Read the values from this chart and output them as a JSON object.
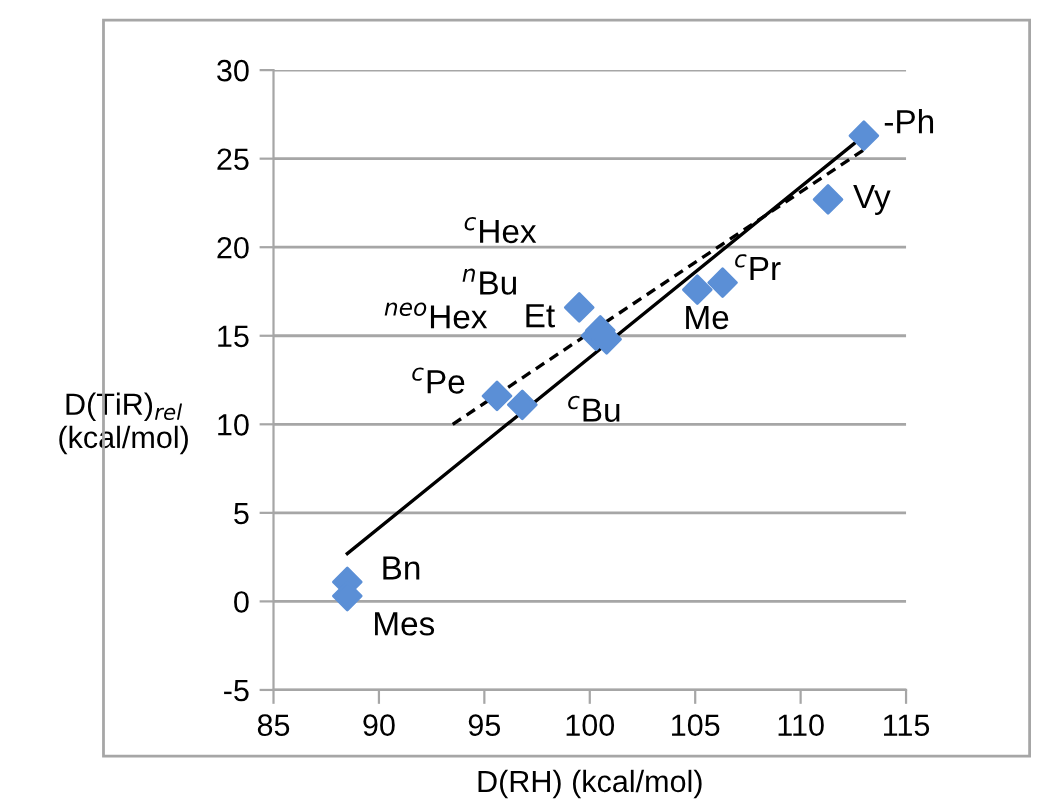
{
  "chart_data": {
    "type": "scatter",
    "xlabel": "D(RH) (kcal/mol)",
    "ylabel": "D(TiR)$_{rel}$\n(kcal/mol)",
    "xlim": [
      85,
      115
    ],
    "xticks": [
      85,
      90,
      95,
      100,
      105,
      110,
      115
    ],
    "ylim": [
      -5,
      30
    ],
    "yticks": [
      -5,
      0,
      5,
      10,
      15,
      20,
      25,
      30
    ],
    "grid": "y",
    "series": [
      {
        "color": "#5b8fd6",
        "marker": "diamond",
        "x": [
          113.0,
          111.3,
          106.3,
          105.1,
          99.5,
          100.3,
          100.5,
          100.8,
          95.6,
          96.8,
          88.5,
          88.5
        ],
        "values": [
          26.3,
          22.7,
          18.0,
          17.6,
          16.6,
          15.0,
          15.3,
          14.8,
          11.6,
          11.1,
          1.1,
          0.3
        ]
      },
      {
        "type": "line",
        "color": "#000000",
        "line_style": "solid",
        "marker": "none",
        "x": [
          88.5,
          113.0
        ],
        "values": [
          2.7,
          26.3
        ]
      },
      {
        "type": "line",
        "color": "#000000",
        "line_style": "dashed",
        "marker": "none",
        "x": [
          93.5,
          113.0
        ],
        "values": [
          10.0,
          25.5
        ]
      }
    ],
    "annotations": [
      {
        "text": "-Ph",
        "x": 113.0,
        "y": 26.3
      },
      {
        "text": "Vy",
        "x": 111.3,
        "y": 22.7
      },
      {
        "text": "$^{c}$Pr",
        "x": 106.3,
        "y": 18.0
      },
      {
        "text": "Me",
        "x": 105.1,
        "y": 17.6
      },
      {
        "text": "Et",
        "x": 99.5,
        "y": 16.6
      },
      "$^{neo}$Hex",
      {
        "text": "$^{n}$Bu",
        "x": 100.5,
        "y": 15.3
      },
      "$^{c}$Hex",
      {
        "text": "$^{c}$Pe",
        "x": 95.6,
        "y": 11.6
      },
      {
        "text": "$^{c}$Bu",
        "x": 96.8,
        "y": 11.1
      },
      {
        "text": "Bn",
        "x": 88.5,
        "y": 1.1
      },
      {
        "text": "Mes",
        "x": 88.5,
        "y": 0.3
      }
    ]
  }
}
